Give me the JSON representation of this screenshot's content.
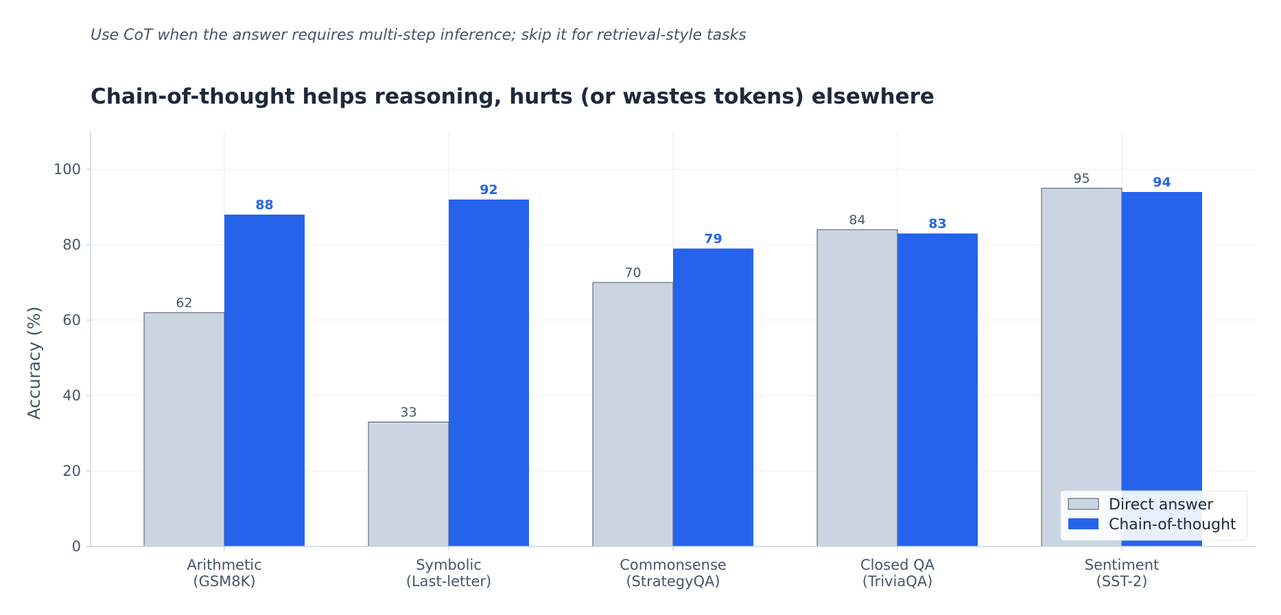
{
  "chart_data": {
    "type": "bar",
    "subtitle": "Use CoT when the answer requires multi-step inference; skip it for retrieval-style tasks",
    "title": "Chain-of-thought helps reasoning, hurts (or wastes tokens) elsewhere",
    "xlabel": "",
    "ylabel": "Accuracy (%)",
    "ylim": [
      0,
      110
    ],
    "yticks": [
      0,
      20,
      40,
      60,
      80,
      100
    ],
    "grid": true,
    "legend_position": "bottom-right",
    "categories": [
      [
        "Arithmetic",
        "(GSM8K)"
      ],
      [
        "Symbolic",
        "(Last-letter)"
      ],
      [
        "Commonsense",
        "(StrategyQA)"
      ],
      [
        "Closed QA",
        "(TriviaQA)"
      ],
      [
        "Sentiment",
        "(SST-2)"
      ]
    ],
    "series": [
      {
        "name": "Direct answer",
        "values": [
          62,
          33,
          70,
          84,
          95
        ],
        "color": "#cbd5e1",
        "edge_color": "#475569",
        "label_color": "#475569",
        "label_bold": false
      },
      {
        "name": "Chain-of-thought",
        "values": [
          88,
          92,
          79,
          83,
          94
        ],
        "color": "#2563eb",
        "edge_color": "#2563eb",
        "label_color": "#2563eb",
        "label_bold": true
      }
    ],
    "colors": {
      "grid": "#e2e8f0",
      "axis": "#cbd5e1"
    }
  }
}
